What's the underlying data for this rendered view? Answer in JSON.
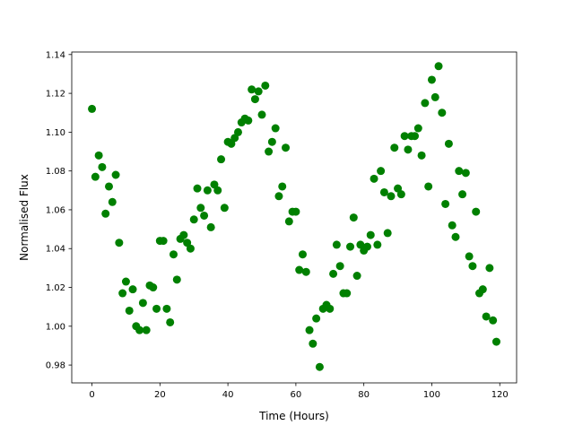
{
  "chart_data": {
    "type": "scatter",
    "title": "",
    "xlabel": "Time (Hours)",
    "ylabel": "Normalised Flux",
    "xlim": [
      -5.95,
      124.95
    ],
    "ylim": [
      0.9708,
      1.1413
    ],
    "xticks": [
      0,
      20,
      40,
      60,
      80,
      100,
      120
    ],
    "xtick_labels": [
      "0",
      "20",
      "40",
      "60",
      "80",
      "100",
      "120"
    ],
    "yticks": [
      0.98,
      1.0,
      1.02,
      1.04,
      1.06,
      1.08,
      1.1,
      1.12,
      1.14
    ],
    "ytick_labels": [
      "0.98",
      "1.00",
      "1.02",
      "1.04",
      "1.06",
      "1.08",
      "1.10",
      "1.12",
      "1.14"
    ],
    "grid": false,
    "marker_color": "#008000",
    "x": [
      0,
      1,
      2,
      3,
      4,
      5,
      6,
      7,
      8,
      9,
      10,
      11,
      12,
      13,
      14,
      15,
      16,
      17,
      18,
      19,
      20,
      21,
      22,
      23,
      24,
      25,
      26,
      27,
      28,
      29,
      30,
      31,
      32,
      33,
      34,
      35,
      36,
      37,
      38,
      39,
      40,
      41,
      42,
      43,
      44,
      45,
      46,
      47,
      48,
      49,
      50,
      51,
      52,
      53,
      54,
      55,
      56,
      57,
      58,
      59,
      60,
      61,
      62,
      63,
      64,
      65,
      66,
      67,
      68,
      69,
      70,
      71,
      72,
      73,
      74,
      75,
      76,
      77,
      78,
      79,
      80,
      81,
      82,
      83,
      84,
      85,
      86,
      87,
      88,
      89,
      90,
      91,
      92,
      93,
      94,
      95,
      96,
      97,
      98,
      99,
      100,
      101,
      102,
      103,
      104,
      105,
      106,
      107,
      108,
      109,
      110,
      111,
      112,
      113,
      114,
      115,
      116,
      117,
      118,
      119
    ],
    "y": [
      1.112,
      1.077,
      1.088,
      1.082,
      1.058,
      1.072,
      1.064,
      1.078,
      1.043,
      1.017,
      1.023,
      1.008,
      1.019,
      1.0,
      0.998,
      1.012,
      0.998,
      1.021,
      1.02,
      1.009,
      1.044,
      1.044,
      1.009,
      1.002,
      1.037,
      1.024,
      1.045,
      1.047,
      1.043,
      1.04,
      1.055,
      1.071,
      1.061,
      1.057,
      1.07,
      1.051,
      1.073,
      1.07,
      1.086,
      1.061,
      1.095,
      1.094,
      1.097,
      1.1,
      1.105,
      1.107,
      1.106,
      1.122,
      1.117,
      1.121,
      1.109,
      1.124,
      1.09,
      1.095,
      1.102,
      1.067,
      1.072,
      1.092,
      1.054,
      1.059,
      1.059,
      1.029,
      1.037,
      1.028,
      0.998,
      0.991,
      1.004,
      0.979,
      1.009,
      1.011,
      1.009,
      1.027,
      1.042,
      1.031,
      1.017,
      1.017,
      1.041,
      1.056,
      1.026,
      1.042,
      1.039,
      1.041,
      1.047,
      1.076,
      1.042,
      1.08,
      1.069,
      1.048,
      1.067,
      1.092,
      1.071,
      1.068,
      1.098,
      1.091,
      1.098,
      1.098,
      1.102,
      1.088,
      1.115,
      1.072,
      1.127,
      1.118,
      1.134,
      1.11,
      1.063,
      1.094,
      1.052,
      1.046,
      1.08,
      1.068,
      1.079,
      1.036,
      1.031,
      1.059,
      1.017,
      1.019,
      1.005,
      1.03,
      1.003,
      0.992
    ]
  }
}
